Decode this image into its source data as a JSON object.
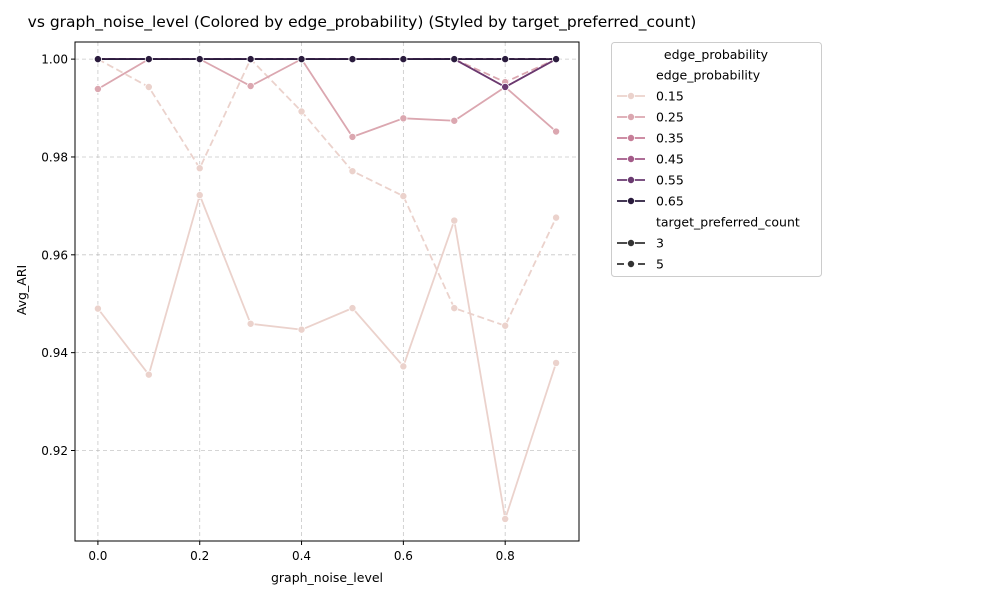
{
  "chart_data": {
    "type": "line",
    "title": "vs graph_noise_level (Colored by edge_probability) (Styled by target_preferred_count)",
    "xlabel": "graph_noise_level",
    "ylabel": "Avg_ARI",
    "xlim": [
      -0.045,
      0.945
    ],
    "ylim": [
      0.9015,
      1.0035
    ],
    "xticks": [
      0.0,
      0.2,
      0.4,
      0.6,
      0.8
    ],
    "xtick_labels": [
      "0.0",
      "0.2",
      "0.4",
      "0.6",
      "0.8"
    ],
    "yticks": [
      0.92,
      0.94,
      0.96,
      0.98,
      1.0
    ],
    "ytick_labels": [
      "0.92",
      "0.94",
      "0.96",
      "0.98",
      "1.00"
    ],
    "grid": true,
    "legend": {
      "placement": "outside-right",
      "title": "edge_probability",
      "hue_header": "edge_probability",
      "style_header": "target_preferred_count",
      "hue_entries": [
        {
          "label": "0.15",
          "color": "#ebd2cc"
        },
        {
          "label": "0.25",
          "color": "#dba7b0"
        },
        {
          "label": "0.35",
          "color": "#c77e98"
        },
        {
          "label": "0.45",
          "color": "#a35a88"
        },
        {
          "label": "0.55",
          "color": "#6a3a70"
        },
        {
          "label": "0.65",
          "color": "#2a1b3d"
        }
      ],
      "style_entries": [
        {
          "label": "3",
          "dash": "solid"
        },
        {
          "label": "5",
          "dash": "dashed"
        }
      ]
    },
    "x": [
      0.0,
      0.1,
      0.2,
      0.3,
      0.4,
      0.5,
      0.6,
      0.7,
      0.8,
      0.9
    ],
    "series": [
      {
        "edge_probability": "0.15",
        "target_preferred_count": "3",
        "color": "#ebd2cc",
        "dash": "solid",
        "values": [
          0.949,
          0.9355,
          0.9722,
          0.9459,
          0.9447,
          0.9491,
          0.9372,
          0.967,
          0.906,
          0.9379
        ]
      },
      {
        "edge_probability": "0.15",
        "target_preferred_count": "5",
        "color": "#ebd2cc",
        "dash": "dashed",
        "values": [
          1.0,
          0.9943,
          0.9777,
          1.0,
          0.9893,
          0.9771,
          0.972,
          0.9491,
          0.9455,
          0.9676
        ]
      },
      {
        "edge_probability": "0.25",
        "target_preferred_count": "3",
        "color": "#dba7b0",
        "dash": "solid",
        "values": [
          0.9939,
          1.0,
          1.0,
          0.9945,
          1.0,
          0.9841,
          0.9879,
          0.9874,
          0.9943,
          0.9852
        ]
      },
      {
        "edge_probability": "0.25",
        "target_preferred_count": "5",
        "color": "#dba7b0",
        "dash": "dashed",
        "values": [
          1.0,
          1.0,
          1.0,
          1.0,
          1.0,
          1.0,
          1.0,
          1.0,
          0.9953,
          1.0
        ]
      },
      {
        "edge_probability": "0.35",
        "target_preferred_count": "3",
        "color": "#c77e98",
        "dash": "solid",
        "values": [
          1.0,
          1.0,
          1.0,
          1.0,
          1.0,
          1.0,
          1.0,
          1.0,
          1.0,
          1.0
        ]
      },
      {
        "edge_probability": "0.35",
        "target_preferred_count": "5",
        "color": "#c77e98",
        "dash": "dashed",
        "values": [
          1.0,
          1.0,
          1.0,
          1.0,
          1.0,
          1.0,
          1.0,
          1.0,
          1.0,
          1.0
        ]
      },
      {
        "edge_probability": "0.45",
        "target_preferred_count": "3",
        "color": "#a35a88",
        "dash": "solid",
        "values": [
          1.0,
          1.0,
          1.0,
          1.0,
          1.0,
          1.0,
          1.0,
          1.0,
          0.9943,
          1.0
        ]
      },
      {
        "edge_probability": "0.45",
        "target_preferred_count": "5",
        "color": "#a35a88",
        "dash": "dashed",
        "values": [
          1.0,
          1.0,
          1.0,
          1.0,
          1.0,
          1.0,
          1.0,
          1.0,
          1.0,
          1.0
        ]
      },
      {
        "edge_probability": "0.55",
        "target_preferred_count": "3",
        "color": "#6a3a70",
        "dash": "solid",
        "values": [
          1.0,
          1.0,
          1.0,
          1.0,
          1.0,
          1.0,
          1.0,
          1.0,
          0.9943,
          1.0
        ]
      },
      {
        "edge_probability": "0.55",
        "target_preferred_count": "5",
        "color": "#6a3a70",
        "dash": "dashed",
        "values": [
          1.0,
          1.0,
          1.0,
          1.0,
          1.0,
          1.0,
          1.0,
          1.0,
          1.0,
          1.0
        ]
      },
      {
        "edge_probability": "0.65",
        "target_preferred_count": "3",
        "color": "#2a1b3d",
        "dash": "solid",
        "values": [
          1.0,
          1.0,
          1.0,
          1.0,
          1.0,
          1.0,
          1.0,
          1.0,
          1.0,
          1.0
        ]
      },
      {
        "edge_probability": "0.65",
        "target_preferred_count": "5",
        "color": "#2a1b3d",
        "dash": "dashed",
        "values": [
          1.0,
          1.0,
          1.0,
          1.0,
          1.0,
          1.0,
          1.0,
          1.0,
          1.0,
          1.0
        ]
      }
    ]
  }
}
